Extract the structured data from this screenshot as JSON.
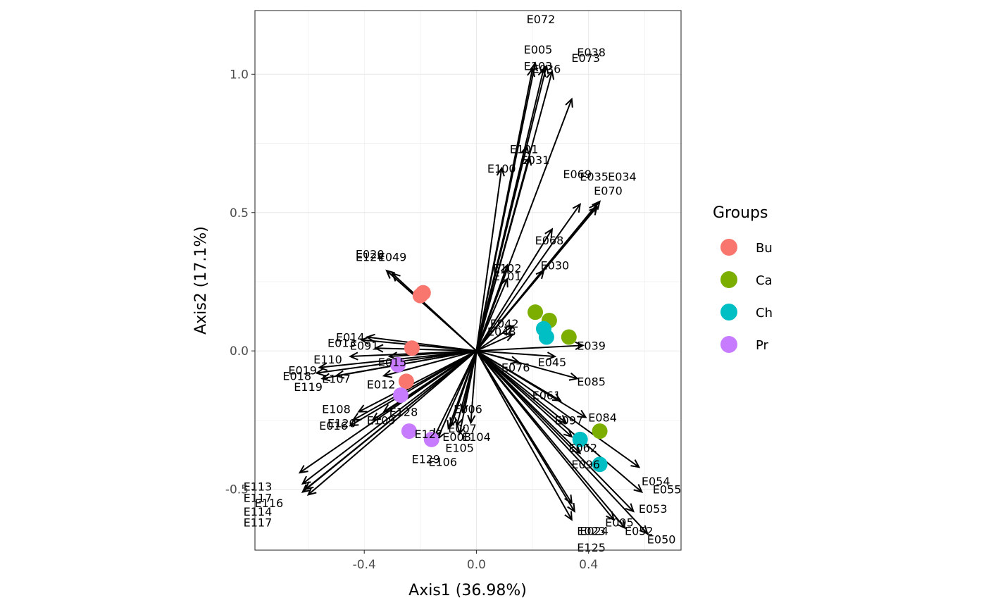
{
  "chart_data": {
    "type": "scatter",
    "xlabel": "Axis1 (36.98%)",
    "ylabel": "Axis2 (17.1%)",
    "xlim": [
      -0.79,
      0.73
    ],
    "ylim": [
      -0.72,
      1.23
    ],
    "x_ticks": [
      {
        "v": -0.4,
        "label": "-0.4"
      },
      {
        "v": 0.0,
        "label": "0.0"
      },
      {
        "v": 0.4,
        "label": "0.4"
      }
    ],
    "y_ticks": [
      {
        "v": -0.5,
        "label": "-0.5"
      },
      {
        "v": 0.0,
        "label": "0.0"
      },
      {
        "v": 0.5,
        "label": "0.5"
      },
      {
        "v": 1.0,
        "label": "1.0"
      }
    ],
    "grid": true,
    "legend": {
      "title": "Groups",
      "position": "right",
      "entries": [
        {
          "name": "Bu",
          "color": "#F8766D"
        },
        {
          "name": "Ca",
          "color": "#7CAE00"
        },
        {
          "name": "Ch",
          "color": "#00BFC4"
        },
        {
          "name": "Pr",
          "color": "#C77CFF"
        }
      ]
    },
    "points": [
      {
        "group": "Bu",
        "x": -0.19,
        "y": 0.21
      },
      {
        "group": "Bu",
        "x": -0.2,
        "y": 0.2
      },
      {
        "group": "Bu",
        "x": -0.23,
        "y": 0.01
      },
      {
        "group": "Bu",
        "x": -0.25,
        "y": -0.11
      },
      {
        "group": "Ca",
        "x": 0.21,
        "y": 0.14
      },
      {
        "group": "Ca",
        "x": 0.26,
        "y": 0.11
      },
      {
        "group": "Ca",
        "x": 0.33,
        "y": 0.05
      },
      {
        "group": "Ca",
        "x": 0.44,
        "y": -0.29
      },
      {
        "group": "Ch",
        "x": 0.24,
        "y": 0.08
      },
      {
        "group": "Ch",
        "x": 0.25,
        "y": 0.05
      },
      {
        "group": "Ch",
        "x": 0.37,
        "y": -0.32
      },
      {
        "group": "Ch",
        "x": 0.44,
        "y": -0.41
      },
      {
        "group": "Pr",
        "x": -0.28,
        "y": -0.05
      },
      {
        "group": "Pr",
        "x": -0.27,
        "y": -0.16
      },
      {
        "group": "Pr",
        "x": -0.24,
        "y": -0.29
      },
      {
        "group": "Pr",
        "x": -0.16,
        "y": -0.32
      }
    ],
    "vectors": [
      {
        "label": "E005",
        "x": 0.21,
        "y": 1.04,
        "lx": 0.22,
        "ly": 1.09
      },
      {
        "label": "E038",
        "x": 0.25,
        "y": 1.03,
        "lx": 0.41,
        "ly": 1.08
      },
      {
        "label": "E073",
        "x": 0.24,
        "y": 1.02,
        "lx": 0.39,
        "ly": 1.06
      },
      {
        "label": "E103",
        "x": 0.2,
        "y": 1.02,
        "lx": 0.22,
        "ly": 1.03
      },
      {
        "label": "E036",
        "x": 0.27,
        "y": 1.01,
        "lx": 0.25,
        "ly": 1.02
      },
      {
        "label": "E072",
        "x": 0.34,
        "y": 0.91,
        "lx": 0.23,
        "ly": 1.2
      },
      {
        "label": "E101",
        "x": 0.18,
        "y": 0.74,
        "lx": 0.17,
        "ly": 0.73
      },
      {
        "label": "E031",
        "x": 0.19,
        "y": 0.7,
        "lx": 0.21,
        "ly": 0.69
      },
      {
        "label": "E100",
        "x": 0.09,
        "y": 0.66,
        "lx": 0.09,
        "ly": 0.66
      },
      {
        "label": "E069",
        "x": 0.37,
        "y": 0.53,
        "lx": 0.36,
        "ly": 0.64
      },
      {
        "label": "E034",
        "x": 0.44,
        "y": 0.54,
        "lx": 0.52,
        "ly": 0.63
      },
      {
        "label": "E035",
        "x": 0.43,
        "y": 0.53,
        "lx": 0.42,
        "ly": 0.63
      },
      {
        "label": "E070",
        "x": 0.43,
        "y": 0.52,
        "lx": 0.47,
        "ly": 0.58
      },
      {
        "label": "E068",
        "x": 0.27,
        "y": 0.44,
        "lx": 0.26,
        "ly": 0.4
      },
      {
        "label": "E030",
        "x": 0.24,
        "y": 0.29,
        "lx": 0.28,
        "ly": 0.31
      },
      {
        "label": "E102",
        "x": 0.11,
        "y": 0.31,
        "lx": 0.11,
        "ly": 0.3
      },
      {
        "label": "E101",
        "x": 0.11,
        "y": 0.26,
        "lx": 0.11,
        "ly": 0.27
      },
      {
        "label": "E020",
        "x": -0.32,
        "y": 0.29,
        "lx": -0.38,
        "ly": 0.35
      },
      {
        "label": "E124",
        "x": -0.32,
        "y": 0.29,
        "lx": -0.38,
        "ly": 0.34
      },
      {
        "label": "E049",
        "x": -0.3,
        "y": 0.28,
        "lx": -0.3,
        "ly": 0.34
      },
      {
        "label": "E014",
        "x": -0.39,
        "y": 0.05,
        "lx": -0.45,
        "ly": 0.05
      },
      {
        "label": "E013",
        "x": -0.41,
        "y": 0.04,
        "lx": -0.48,
        "ly": 0.03
      },
      {
        "label": "E091",
        "x": -0.36,
        "y": 0.01,
        "lx": -0.4,
        "ly": 0.02
      },
      {
        "label": "E110",
        "x": -0.45,
        "y": -0.02,
        "lx": -0.53,
        "ly": -0.03
      },
      {
        "label": "E015",
        "x": -0.31,
        "y": -0.02,
        "lx": -0.3,
        "ly": -0.04
      },
      {
        "label": "E019",
        "x": -0.56,
        "y": -0.06,
        "lx": -0.62,
        "ly": -0.07
      },
      {
        "label": "E018",
        "x": -0.57,
        "y": -0.08,
        "lx": -0.64,
        "ly": -0.09
      },
      {
        "label": "E107",
        "x": -0.5,
        "y": -0.09,
        "lx": -0.5,
        "ly": -0.1
      },
      {
        "label": "E119",
        "x": -0.55,
        "y": -0.1,
        "lx": -0.6,
        "ly": -0.13
      },
      {
        "label": "E012",
        "x": -0.33,
        "y": -0.09,
        "lx": -0.34,
        "ly": -0.12
      },
      {
        "label": "E108",
        "x": -0.42,
        "y": -0.22,
        "lx": -0.5,
        "ly": -0.21
      },
      {
        "label": "E128",
        "x": -0.33,
        "y": -0.22,
        "lx": -0.26,
        "ly": -0.22
      },
      {
        "label": "E120",
        "x": -0.44,
        "y": -0.25,
        "lx": -0.48,
        "ly": -0.26
      },
      {
        "label": "E109",
        "x": -0.37,
        "y": -0.25,
        "lx": -0.34,
        "ly": -0.25
      },
      {
        "label": "E016",
        "x": -0.45,
        "y": -0.27,
        "lx": -0.51,
        "ly": -0.27
      },
      {
        "label": "E113",
        "x": -0.63,
        "y": -0.44,
        "lx": -0.78,
        "ly": -0.49
      },
      {
        "label": "E117",
        "x": -0.62,
        "y": -0.48,
        "lx": -0.78,
        "ly": -0.53
      },
      {
        "label": "E116",
        "x": -0.61,
        "y": -0.5,
        "lx": -0.74,
        "ly": -0.55
      },
      {
        "label": "E114",
        "x": -0.62,
        "y": -0.51,
        "lx": -0.78,
        "ly": -0.58
      },
      {
        "label": "E117",
        "x": -0.6,
        "y": -0.52,
        "lx": -0.78,
        "ly": -0.62
      },
      {
        "label": "E006",
        "x": -0.05,
        "y": -0.22,
        "lx": -0.03,
        "ly": -0.21
      },
      {
        "label": "E007",
        "x": -0.07,
        "y": -0.27,
        "lx": -0.05,
        "ly": -0.28
      },
      {
        "label": "E104",
        "x": -0.02,
        "y": -0.26,
        "lx": 0.0,
        "ly": -0.31
      },
      {
        "label": "E127",
        "x": -0.09,
        "y": -0.27,
        "lx": -0.17,
        "ly": -0.3
      },
      {
        "label": "E008",
        "x": -0.1,
        "y": -0.28,
        "lx": -0.07,
        "ly": -0.31
      },
      {
        "label": "E105",
        "x": -0.06,
        "y": -0.3,
        "lx": -0.06,
        "ly": -0.35
      },
      {
        "label": "E129",
        "x": -0.15,
        "y": -0.31,
        "lx": -0.18,
        "ly": -0.39
      },
      {
        "label": "E106",
        "x": -0.14,
        "y": -0.32,
        "lx": -0.12,
        "ly": -0.4
      },
      {
        "label": "E084",
        "x": 0.39,
        "y": -0.24,
        "lx": 0.45,
        "ly": -0.24
      },
      {
        "label": "E097",
        "x": 0.32,
        "y": -0.26,
        "lx": 0.33,
        "ly": -0.25
      },
      {
        "label": "E062",
        "x": 0.34,
        "y": -0.31,
        "lx": 0.38,
        "ly": -0.35
      },
      {
        "label": "E096",
        "x": 0.37,
        "y": -0.37,
        "lx": 0.39,
        "ly": -0.41
      },
      {
        "label": "E054",
        "x": 0.58,
        "y": -0.42,
        "lx": 0.64,
        "ly": -0.47
      },
      {
        "label": "E055",
        "x": 0.59,
        "y": -0.51,
        "lx": 0.68,
        "ly": -0.5
      },
      {
        "label": "E053",
        "x": 0.56,
        "y": -0.58,
        "lx": 0.63,
        "ly": -0.57
      },
      {
        "label": "E095",
        "x": 0.49,
        "y": -0.61,
        "lx": 0.51,
        "ly": -0.62
      },
      {
        "label": "E052",
        "x": 0.53,
        "y": -0.64,
        "lx": 0.58,
        "ly": -0.65
      },
      {
        "label": "E023",
        "x": 0.34,
        "y": -0.61,
        "lx": 0.41,
        "ly": -0.65
      },
      {
        "label": "E024",
        "x": 0.35,
        "y": -0.58,
        "lx": 0.42,
        "ly": -0.65
      },
      {
        "label": "E050",
        "x": 0.61,
        "y": -0.66,
        "lx": 0.66,
        "ly": -0.68
      },
      {
        "label": "E125",
        "x": 0.34,
        "y": -0.55,
        "lx": 0.41,
        "ly": -0.71
      },
      {
        "label": "E039",
        "x": 0.38,
        "y": 0.02,
        "lx": 0.41,
        "ly": 0.02
      },
      {
        "label": "E085",
        "x": 0.36,
        "y": -0.1,
        "lx": 0.41,
        "ly": -0.11
      },
      {
        "label": "E045",
        "x": 0.28,
        "y": -0.02,
        "lx": 0.27,
        "ly": -0.04
      },
      {
        "label": "E061",
        "x": 0.3,
        "y": -0.18,
        "lx": 0.25,
        "ly": -0.16
      },
      {
        "label": "E042",
        "x": 0.13,
        "y": 0.09,
        "lx": 0.1,
        "ly": 0.1
      },
      {
        "label": "E048",
        "x": 0.13,
        "y": 0.06,
        "lx": 0.09,
        "ly": 0.07
      },
      {
        "label": "E076",
        "x": 0.15,
        "y": -0.04,
        "lx": 0.14,
        "ly": -0.06
      }
    ]
  }
}
